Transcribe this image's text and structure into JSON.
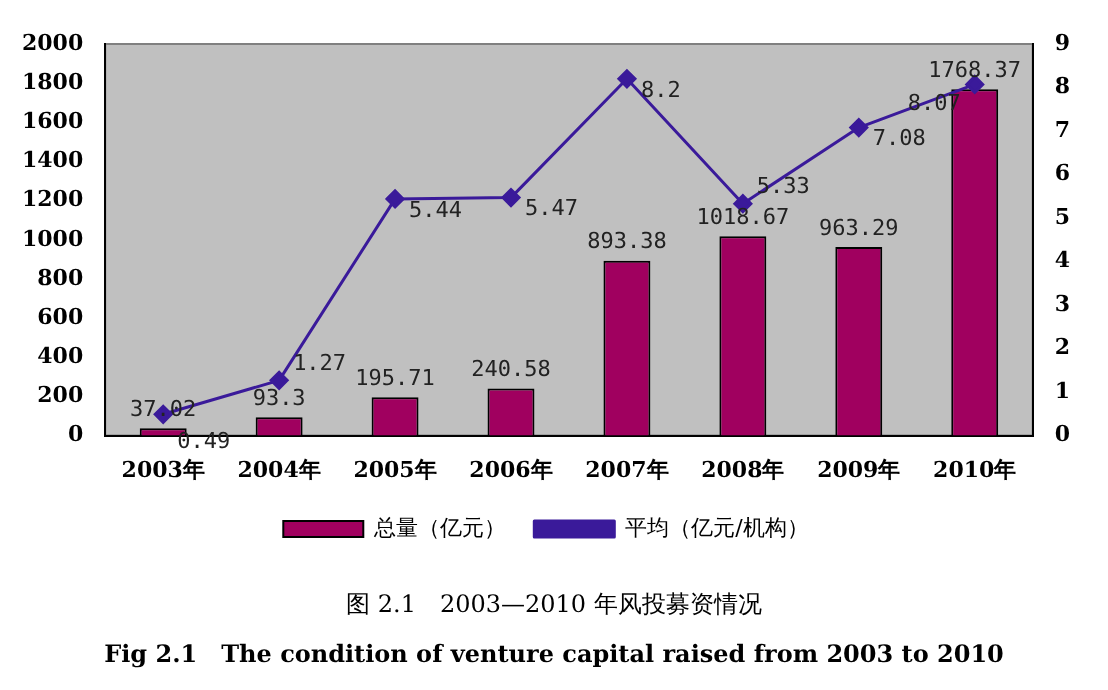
{
  "chart_data": {
    "type": "bar",
    "categories": [
      "2003年",
      "2004年",
      "2005年",
      "2006年",
      "2007年",
      "2008年",
      "2009年",
      "2010年"
    ],
    "series": [
      {
        "name": "总量（亿元）",
        "color": "#a0005f",
        "values": [
          37.02,
          93.3,
          195.71,
          240.58,
          893.38,
          1018.67,
          963.29,
          1768.37
        ]
      },
      {
        "name": "平均（亿元/机构）",
        "type": "line",
        "axis": "y2",
        "color": "#3a1a9a",
        "values": [
          0.49,
          1.27,
          5.44,
          5.47,
          8.2,
          5.33,
          7.08,
          8.07
        ]
      }
    ],
    "ylim": [
      0,
      2000
    ],
    "yticks": [
      0,
      200,
      400,
      600,
      800,
      1000,
      1200,
      1400,
      1600,
      1800,
      2000
    ],
    "y2lim": [
      0,
      9
    ],
    "y2ticks": [
      0,
      1,
      2,
      3,
      4,
      5,
      6,
      7,
      8,
      9
    ],
    "grid": false,
    "legend": "bottom",
    "marker": "diamond",
    "line_style": "solid",
    "data_labels": true,
    "annotations": [
      "图 2.1　2003—2010 年风投募资情况",
      "Fig 2.1　The condition of venture capital raised from 2003 to 2010"
    ]
  }
}
